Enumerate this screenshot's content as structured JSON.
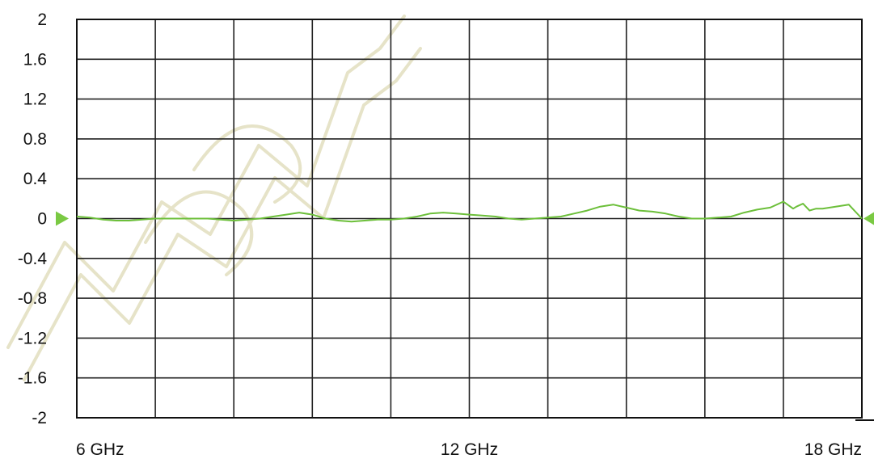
{
  "chart_data": {
    "type": "line",
    "title": "",
    "xlabel": "",
    "ylabel": "",
    "xlim": [
      6,
      18
    ],
    "ylim": [
      -2,
      2
    ],
    "x_ticks": [
      {
        "value": 6,
        "label": "6 GHz"
      },
      {
        "value": 12,
        "label": "12 GHz"
      },
      {
        "value": 18,
        "label": "18 GHz"
      }
    ],
    "y_ticks": [
      {
        "value": 2,
        "label": "2"
      },
      {
        "value": 1.6,
        "label": "1.6"
      },
      {
        "value": 1.2,
        "label": "1.2"
      },
      {
        "value": 0.8,
        "label": "0.8"
      },
      {
        "value": 0.4,
        "label": "0.4"
      },
      {
        "value": 0,
        "label": "0"
      },
      {
        "value": -0.4,
        "label": "-0.4"
      },
      {
        "value": -0.8,
        "label": "-0.8"
      },
      {
        "value": -1.2,
        "label": "-1.2"
      },
      {
        "value": -1.6,
        "label": "-1.6"
      },
      {
        "value": -2,
        "label": "-2"
      }
    ],
    "x_divisions": 10,
    "y_divisions": 10,
    "grid": true,
    "trace_color": "#6cbf3a",
    "reference_marker_color": "#7ac943",
    "series": [
      {
        "x": [
          6.0,
          6.2,
          6.4,
          6.6,
          6.8,
          7.0,
          7.2,
          7.4,
          7.6,
          7.8,
          8.0,
          8.2,
          8.4,
          8.6,
          8.8,
          9.0,
          9.2,
          9.4,
          9.6,
          9.8,
          10.0,
          10.2,
          10.4,
          10.6,
          10.8,
          11.0,
          11.2,
          11.4,
          11.6,
          11.8,
          12.0,
          12.2,
          12.4,
          12.6,
          12.8,
          13.0,
          13.2,
          13.4,
          13.6,
          13.8,
          14.0,
          14.2,
          14.4,
          14.6,
          14.8,
          15.0,
          15.2,
          15.4,
          15.6,
          15.8,
          16.0,
          16.2,
          16.4,
          16.6,
          16.8,
          16.95,
          17.0,
          17.1,
          17.2,
          17.3,
          17.4,
          17.6,
          17.8,
          18.0
        ],
        "y": [
          0.02,
          0.01,
          -0.01,
          -0.02,
          -0.02,
          -0.01,
          0.0,
          0.0,
          0.0,
          0.0,
          0.0,
          -0.01,
          -0.02,
          -0.01,
          0.0,
          0.02,
          0.04,
          0.06,
          0.04,
          0.0,
          -0.02,
          -0.03,
          -0.02,
          -0.01,
          -0.01,
          0.0,
          0.02,
          0.05,
          0.06,
          0.05,
          0.04,
          0.03,
          0.02,
          0.0,
          -0.01,
          0.0,
          0.01,
          0.02,
          0.05,
          0.08,
          0.12,
          0.14,
          0.11,
          0.08,
          0.07,
          0.05,
          0.02,
          0.0,
          0.0,
          0.01,
          0.02,
          0.06,
          0.09,
          0.11,
          0.17,
          0.1,
          0.12,
          0.15,
          0.08,
          0.1,
          0.1,
          0.12,
          0.14,
          0.0
        ]
      }
    ]
  }
}
